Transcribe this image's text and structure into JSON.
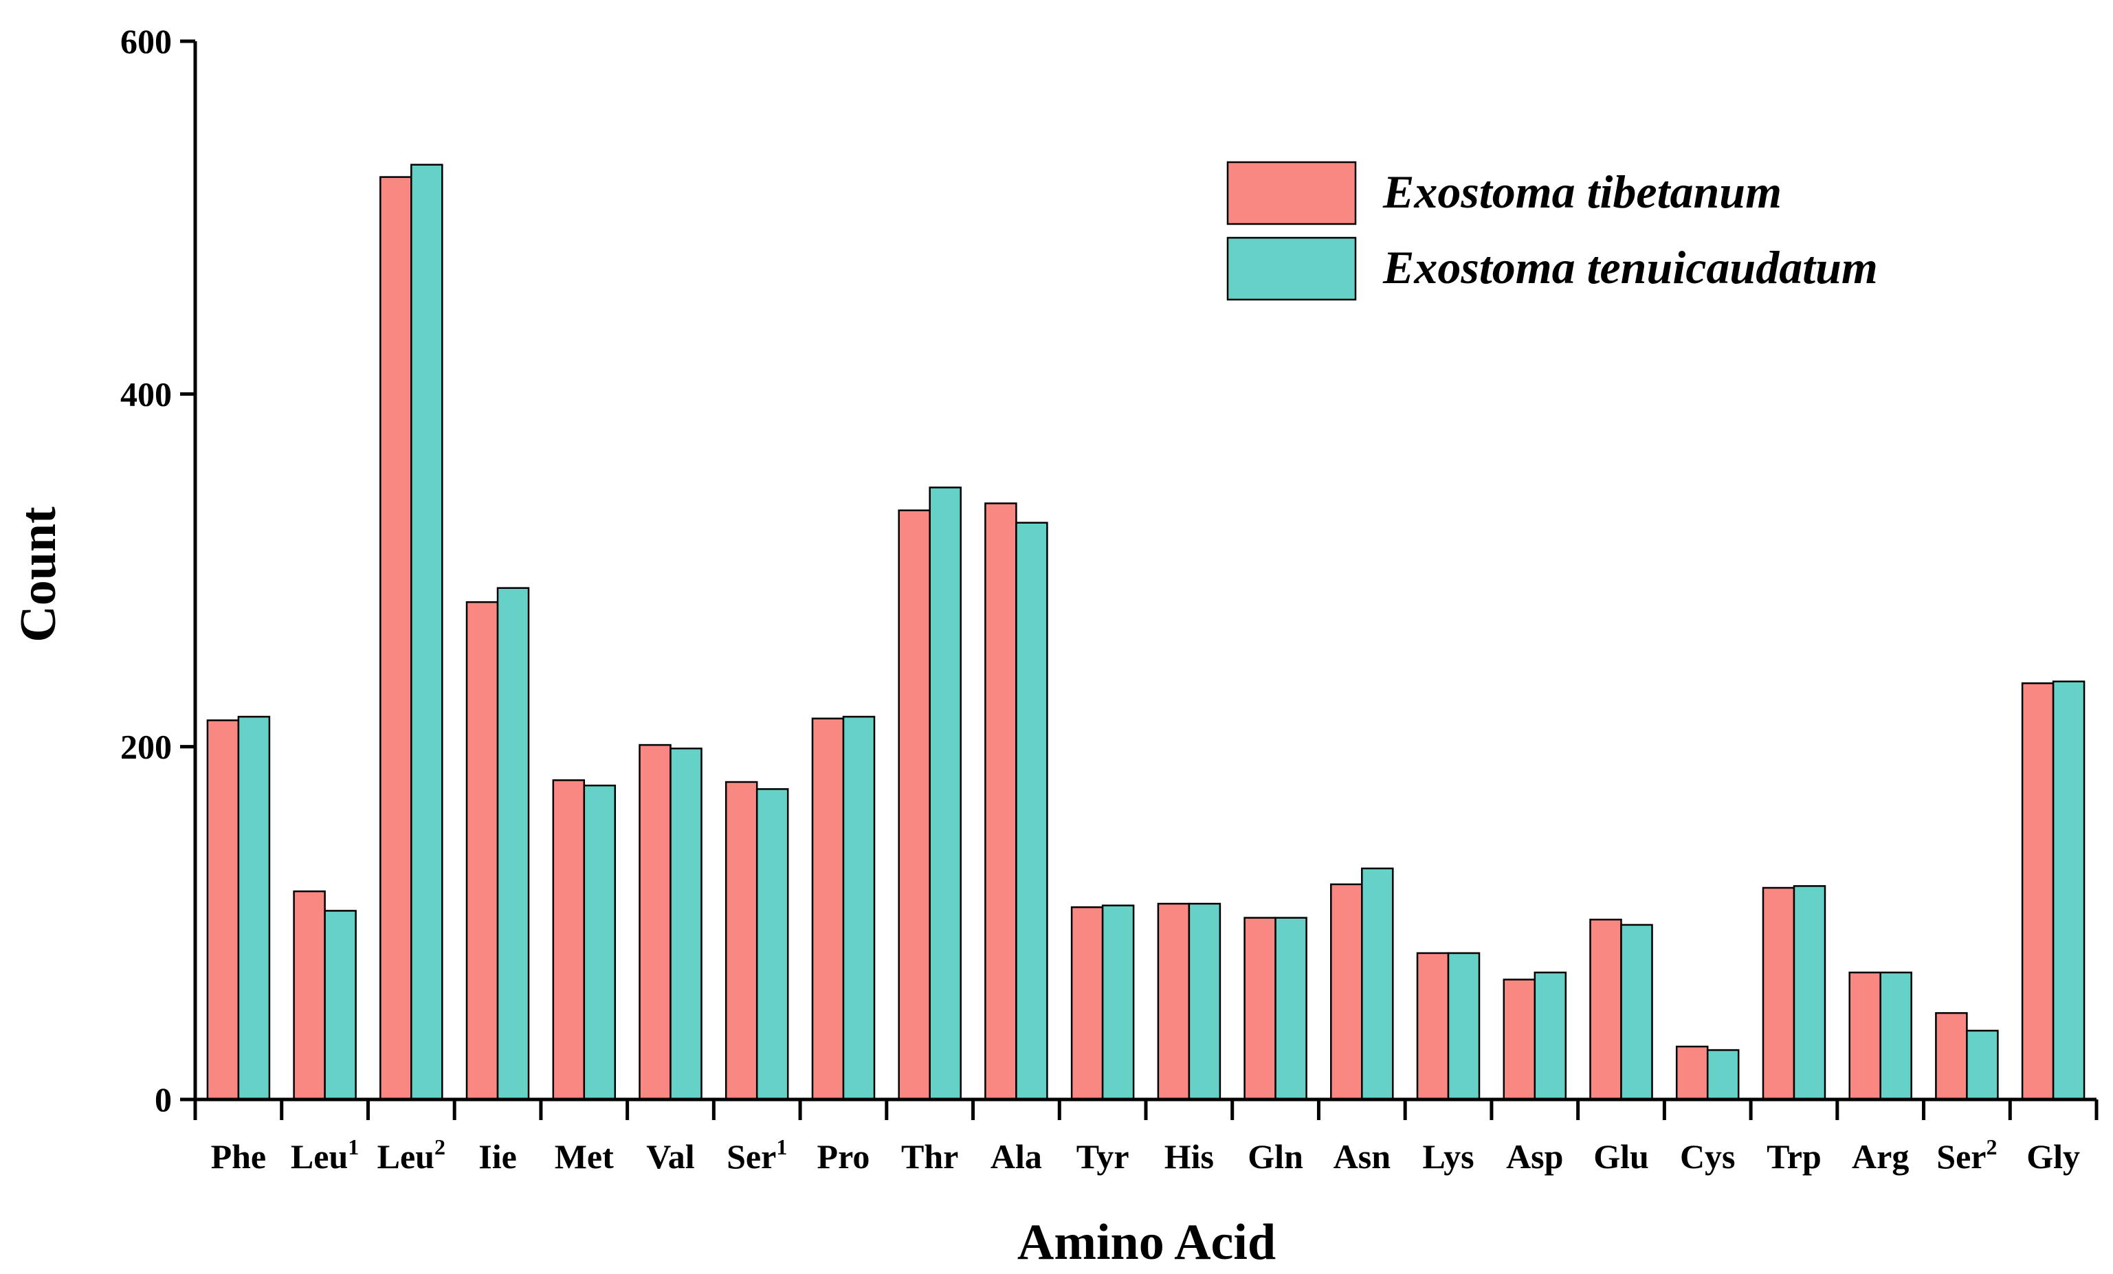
{
  "chart_data": {
    "type": "bar",
    "title": "",
    "xlabel": "Amino Acid",
    "ylabel": "Count",
    "ylim": [
      0,
      600
    ],
    "yticks": [
      "0",
      "200",
      "400",
      "600"
    ],
    "categories": [
      {
        "base": "Phe",
        "sup": ""
      },
      {
        "base": "Leu",
        "sup": "1"
      },
      {
        "base": "Leu",
        "sup": "2"
      },
      {
        "base": "Iie",
        "sup": ""
      },
      {
        "base": "Met",
        "sup": ""
      },
      {
        "base": "Val",
        "sup": ""
      },
      {
        "base": "Ser",
        "sup": "1"
      },
      {
        "base": "Pro",
        "sup": ""
      },
      {
        "base": "Thr",
        "sup": ""
      },
      {
        "base": "Ala",
        "sup": ""
      },
      {
        "base": "Tyr",
        "sup": ""
      },
      {
        "base": "His",
        "sup": ""
      },
      {
        "base": "Gln",
        "sup": ""
      },
      {
        "base": "Asn",
        "sup": ""
      },
      {
        "base": "Lys",
        "sup": ""
      },
      {
        "base": "Asp",
        "sup": ""
      },
      {
        "base": "Glu",
        "sup": ""
      },
      {
        "base": "Cys",
        "sup": ""
      },
      {
        "base": "Trp",
        "sup": ""
      },
      {
        "base": "Arg",
        "sup": ""
      },
      {
        "base": "Ser",
        "sup": "2"
      },
      {
        "base": "Gly",
        "sup": ""
      }
    ],
    "series": [
      {
        "name": "Exostoma tibetanum",
        "color": "#fa8882",
        "values": [
          215,
          118,
          523,
          282,
          181,
          201,
          180,
          216,
          334,
          338,
          109,
          111,
          103,
          122,
          83,
          68,
          102,
          30,
          120,
          72,
          49,
          236
        ]
      },
      {
        "name": "Exostoma tenuicaudatum",
        "color": "#65d1c7",
        "values": [
          217,
          107,
          530,
          290,
          178,
          199,
          176,
          217,
          347,
          327,
          110,
          111,
          103,
          131,
          83,
          72,
          99,
          28,
          121,
          72,
          39,
          237
        ]
      }
    ],
    "legend_position": "top-right",
    "grid": false
  }
}
